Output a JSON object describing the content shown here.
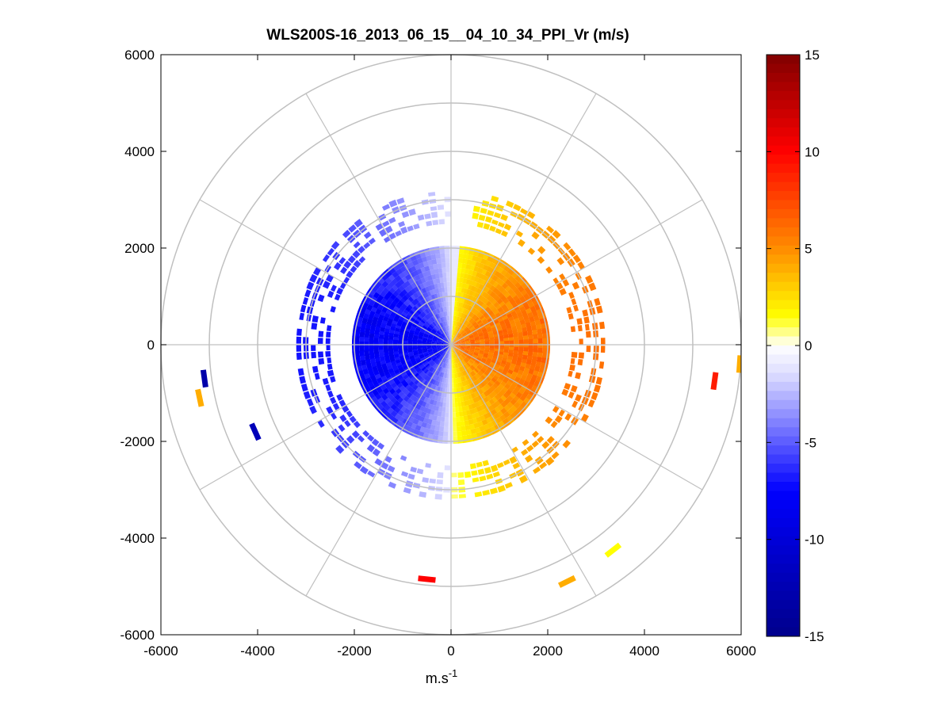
{
  "chart_data": {
    "type": "heatmap",
    "title": "WLS200S-16_2013_06_15__04_10_34_PPI_Vr (m/s)",
    "xlabel": "m.s",
    "xlabel_sup": "-1",
    "ylabel": "",
    "xlim": [
      -6000,
      6000
    ],
    "ylim": [
      -6000,
      6000
    ],
    "x_ticks": [
      "-6000",
      "-4000",
      "-2000",
      "0",
      "2000",
      "4000",
      "6000"
    ],
    "y_ticks": [
      "6000",
      "4000",
      "2000",
      "0",
      "-2000",
      "-4000",
      "-6000"
    ],
    "polar_grid": {
      "ring_radii": [
        1000,
        2000,
        3000,
        4000,
        5000,
        6000
      ],
      "spoke_angles_deg": [
        0,
        30,
        60,
        90,
        120,
        150,
        180,
        210,
        240,
        270,
        300,
        330
      ]
    },
    "colorbar": {
      "range": [
        -15,
        15
      ],
      "ticks": [
        "15",
        "10",
        "5",
        "0",
        "-5",
        "-10",
        "-15"
      ],
      "colormap": [
        "#00008b",
        "#0000ff",
        "#dcdcff",
        "#ffffff",
        "#ffff00",
        "#ff8c00",
        "#ff0000",
        "#800000"
      ]
    },
    "fields": [
      {
        "name": "inner_disk",
        "r_min": 0,
        "r_max": 2050,
        "theta_range_deg": [
          -95,
          85
        ],
        "v_min": 0.5,
        "v_max": 6,
        "sign": 1
      },
      {
        "name": "inner_disk",
        "r_min": 0,
        "r_max": 2050,
        "theta_range_deg": [
          85,
          270
        ],
        "v_min": -8,
        "v_max": -1,
        "sign": -1
      },
      {
        "name": "ring_a",
        "r_min": 2500,
        "r_max": 3200,
        "theta_range_deg": [
          -90,
          80
        ],
        "v_min": 0.5,
        "v_max": 6,
        "sign": 1
      },
      {
        "name": "ring_a",
        "r_min": 2500,
        "r_max": 3200,
        "theta_range_deg": [
          90,
          270
        ],
        "v_min": -7,
        "v_max": -1,
        "sign": -1
      }
    ],
    "far_returns": [
      {
        "x": -5100,
        "y": -700,
        "value": -13
      },
      {
        "x": -5200,
        "y": -1100,
        "value": 4
      },
      {
        "x": -4050,
        "y": -1800,
        "value": -12
      },
      {
        "x": 5450,
        "y": -750,
        "value": 9
      },
      {
        "x": 5970,
        "y": -400,
        "value": 4
      },
      {
        "x": -500,
        "y": -4850,
        "value": 10
      },
      {
        "x": 2400,
        "y": -4900,
        "value": 4
      },
      {
        "x": 3350,
        "y": -4250,
        "value": 1.5
      }
    ]
  }
}
